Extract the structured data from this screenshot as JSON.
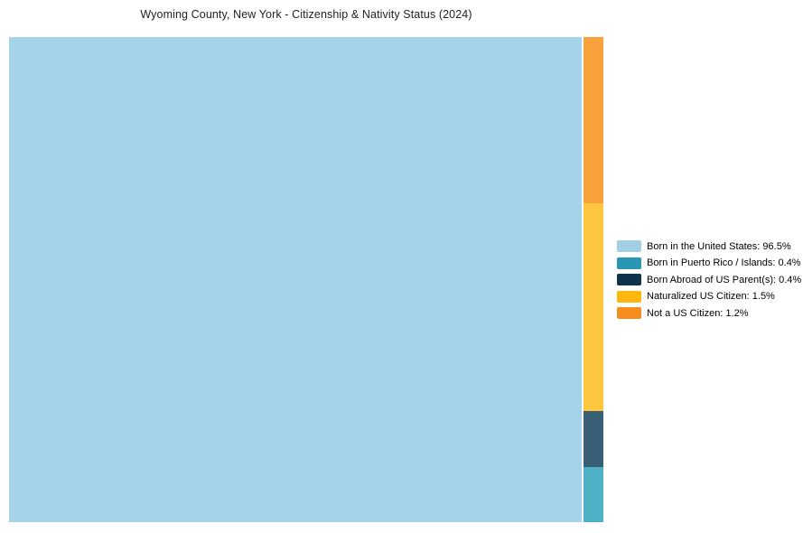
{
  "chart_data": {
    "type": "treemap",
    "title": "Wyoming County, New York - Citizenship & Nativity Status (2024)",
    "categories": [
      "Born in the United States",
      "Born in Puerto Rico / Islands",
      "Born Abroad of US Parent(s)",
      "Naturalized US Citizen",
      "Not a US Citizen"
    ],
    "values": [
      96.5,
      0.4,
      0.4,
      1.5,
      1.2
    ],
    "unit": "%",
    "legend_position": "right",
    "legend_labels": [
      "Born in the United States: 96.5%",
      "Born in Puerto Rico / Islands: 0.4%",
      "Born Abroad of US Parent(s): 0.4%",
      "Naturalized US Citizen: 1.5%",
      "Not a US Citizen: 1.2%"
    ],
    "main_segment": "Born in the United States",
    "strip_order_top_to_bottom": [
      "Not a US Citizen",
      "Naturalized US Citizen",
      "Born Abroad of US Parent(s)",
      "Born in Puerto Rico / Islands"
    ],
    "colors": {
      "chart": {
        "Born in the United States": "#A5D3EA",
        "Born in Puerto Rico / Islands": "#4DB0C5",
        "Born Abroad of US Parent(s)": "#3A6078",
        "Naturalized US Citizen": "#FFC640",
        "Not a US Citizen": "#F9A23D"
      },
      "legend": {
        "Born in the United States": "#A3CFE5",
        "Born in Puerto Rico / Islands": "#2997B3",
        "Born Abroad of US Parent(s)": "#0F334A",
        "Naturalized US Citizen": "#FEB70F",
        "Not a US Citizen": "#F78D1E"
      }
    },
    "background_color": "#FFFFFF",
    "title_color": "#222222"
  }
}
